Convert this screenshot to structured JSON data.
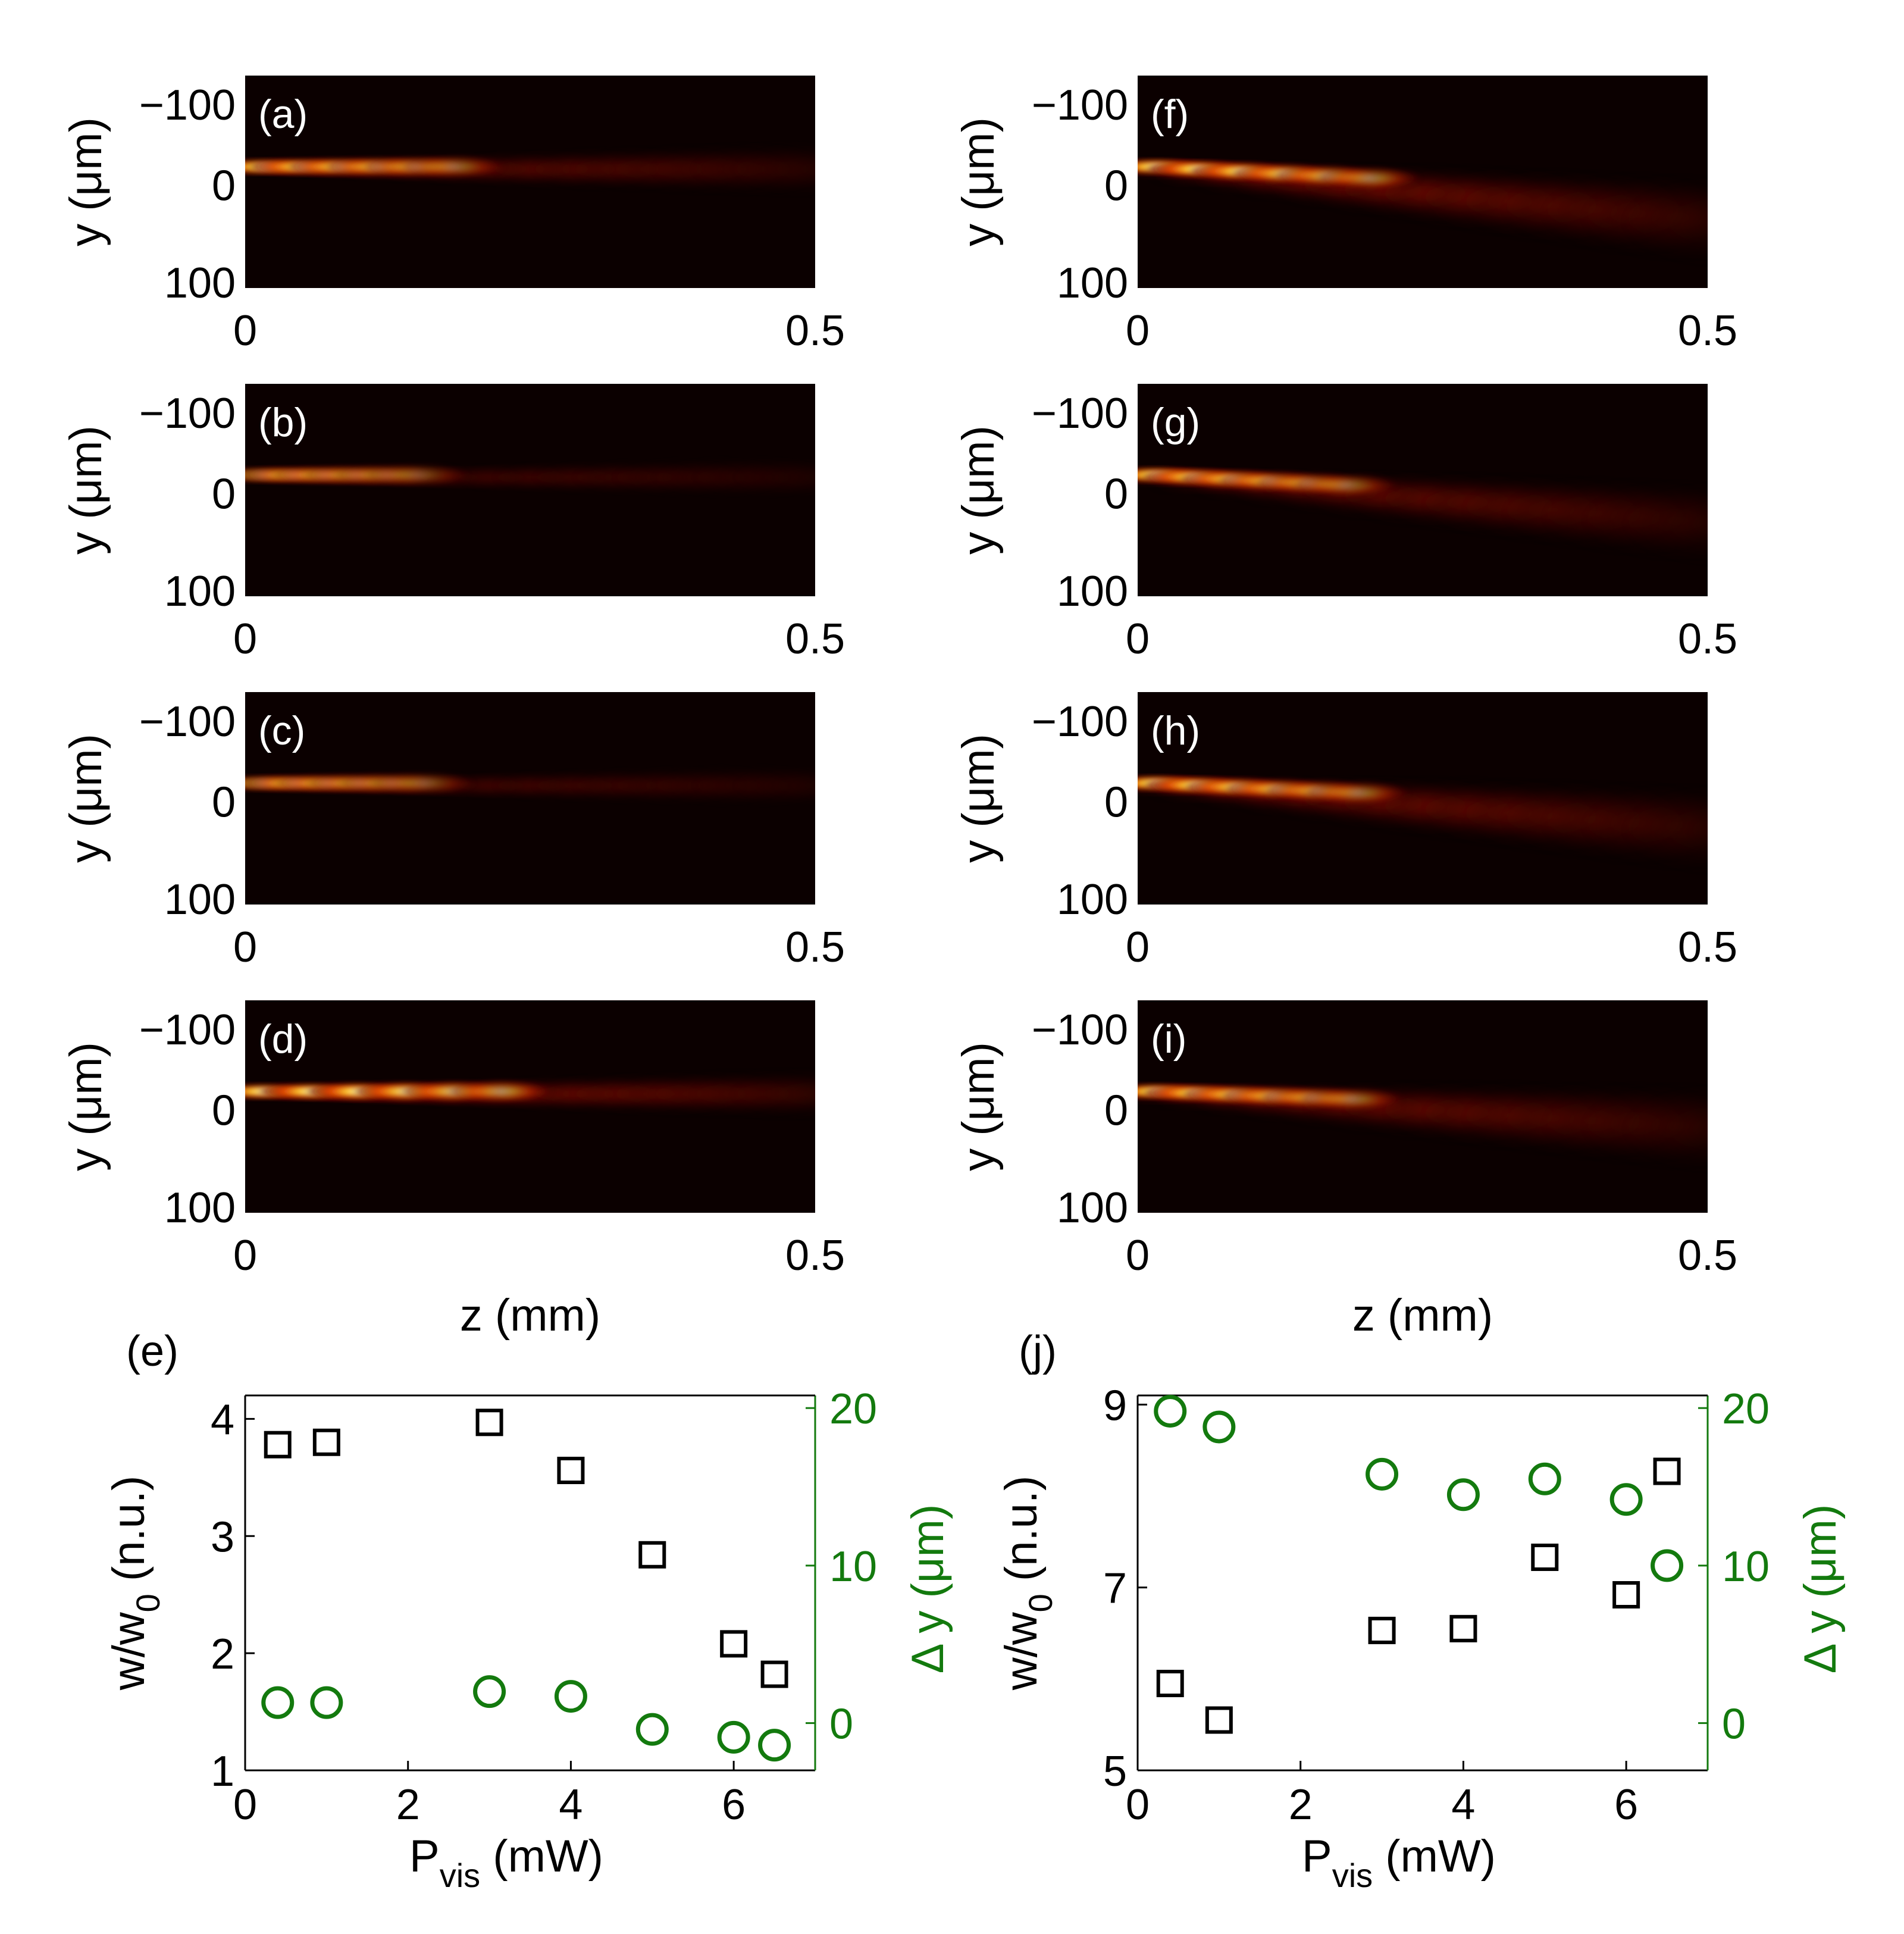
{
  "image_panels": [
    {
      "label": "(a)",
      "tilt": 0.0,
      "bright": 1.0,
      "spread": 0.9
    },
    {
      "label": "(b)",
      "tilt": 0.0,
      "bright": 0.7,
      "spread": 0.7
    },
    {
      "label": "(c)",
      "tilt": 0.0,
      "bright": 0.75,
      "spread": 0.7
    },
    {
      "label": "(d)",
      "tilt": 0.0,
      "bright": 1.4,
      "spread": 0.8
    },
    {
      "label": "(f)",
      "tilt": 0.45,
      "bright": 1.2,
      "spread": 1.5
    },
    {
      "label": "(g)",
      "tilt": 0.4,
      "bright": 1.0,
      "spread": 1.4
    },
    {
      "label": "(h)",
      "tilt": 0.38,
      "bright": 1.1,
      "spread": 1.5
    },
    {
      "label": "(i)",
      "tilt": 0.3,
      "bright": 1.05,
      "spread": 1.5
    }
  ],
  "image_axes": {
    "y_ticks": [
      "−100",
      "0",
      "100"
    ],
    "x_ticks": [
      "0",
      "0.5"
    ],
    "ylabel": "y (μm)",
    "xlabel": "z (mm)"
  },
  "colors": {
    "marker_black": "#000000",
    "marker_green": "#137a0e",
    "image_bg": "#0b0000"
  },
  "chart_data": [
    {
      "type": "scatter",
      "label": "(e)",
      "xlabel_main": "P",
      "xlabel_sub": "vis",
      "xlabel_rest": " (mW)",
      "ylabel_main": "w/w",
      "ylabel_sub": "0",
      "ylabel_rest": " (n.u.)",
      "y2label": "Δ y (μm)",
      "xlim": [
        0,
        7
      ],
      "ylim": [
        1,
        4.2
      ],
      "y2lim": [
        -3,
        20.8
      ],
      "x_ticks": [
        "0",
        "2",
        "4",
        "6"
      ],
      "y_ticks": [
        "1",
        "2",
        "3",
        "4"
      ],
      "y2_ticks": [
        "0",
        "10",
        "20"
      ],
      "series": [
        {
          "name": "w/w0",
          "marker": "square",
          "axis": "left",
          "x": [
            0.4,
            1.0,
            3.0,
            4.0,
            5.0,
            6.0,
            6.5
          ],
          "y": [
            3.78,
            3.8,
            3.97,
            3.56,
            2.84,
            2.08,
            1.82
          ]
        },
        {
          "name": "Δy",
          "marker": "circle",
          "axis": "right",
          "x": [
            0.4,
            1.0,
            3.0,
            4.0,
            5.0,
            6.0,
            6.5
          ],
          "y": [
            1.3,
            1.3,
            2.0,
            1.7,
            -0.4,
            -0.9,
            -1.4
          ]
        }
      ]
    },
    {
      "type": "scatter",
      "label": "(j)",
      "xlabel_main": "P",
      "xlabel_sub": "vis",
      "xlabel_rest": " (mW)",
      "ylabel_main": "w/w",
      "ylabel_sub": "0",
      "ylabel_rest": " (n.u.)",
      "y2label": "Δ y (μm)",
      "xlim": [
        0,
        7
      ],
      "ylim": [
        5,
        9.1
      ],
      "y2lim": [
        -3,
        20.8
      ],
      "x_ticks": [
        "0",
        "2",
        "4",
        "6"
      ],
      "y_ticks": [
        "5",
        "7",
        "9"
      ],
      "y2_ticks": [
        "0",
        "10",
        "20"
      ],
      "series": [
        {
          "name": "w/w0",
          "marker": "square",
          "axis": "left",
          "x": [
            0.4,
            1.0,
            3.0,
            4.0,
            5.0,
            6.0,
            6.5
          ],
          "y": [
            5.95,
            5.55,
            6.53,
            6.55,
            7.33,
            6.92,
            8.27
          ]
        },
        {
          "name": "Δy",
          "marker": "circle",
          "axis": "right",
          "x": [
            0.4,
            1.0,
            3.0,
            4.0,
            5.0,
            6.0,
            6.5
          ],
          "y": [
            19.8,
            18.8,
            15.8,
            14.5,
            15.5,
            14.2,
            10.0
          ]
        }
      ]
    }
  ]
}
